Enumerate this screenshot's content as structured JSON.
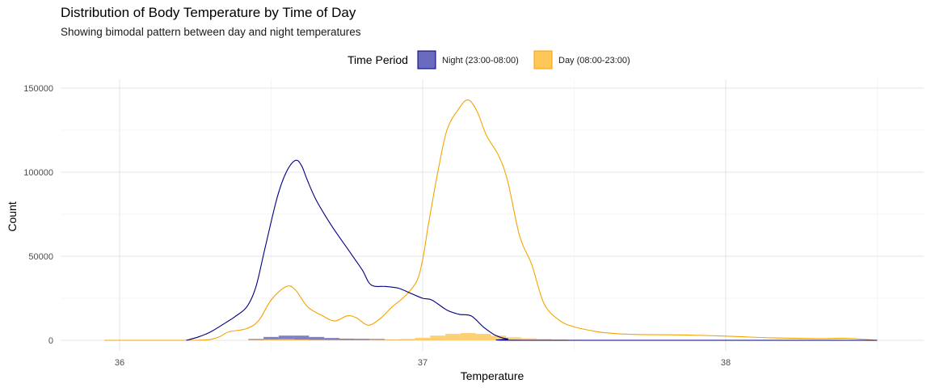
{
  "chart_data": {
    "type": "area",
    "title": "Distribution of Body Temperature by Time of Day",
    "subtitle": "Showing bimodal pattern between day and night temperatures",
    "xlabel": "Temperature",
    "ylabel": "Count",
    "xlim": [
      35.95,
      38.5
    ],
    "ylim": [
      0,
      150000
    ],
    "x_ticks": [
      36,
      37,
      38
    ],
    "y_ticks": [
      0,
      50000,
      100000,
      150000
    ],
    "grid": true,
    "legend": {
      "title": "Time Period",
      "placement": "top"
    },
    "series": [
      {
        "name": "Night (23:00-08:00)",
        "line_color": "#000080",
        "fill_color": "#6a6abf",
        "density": [
          [
            36.22,
            0
          ],
          [
            36.26,
            2000
          ],
          [
            36.3,
            5000
          ],
          [
            36.35,
            10500
          ],
          [
            36.38,
            14000
          ],
          [
            36.42,
            20000
          ],
          [
            36.45,
            32000
          ],
          [
            36.48,
            55000
          ],
          [
            36.52,
            85000
          ],
          [
            36.55,
            100000
          ],
          [
            36.58,
            107000
          ],
          [
            36.6,
            104000
          ],
          [
            36.62,
            95000
          ],
          [
            36.65,
            83000
          ],
          [
            36.7,
            68000
          ],
          [
            36.75,
            55000
          ],
          [
            36.8,
            42000
          ],
          [
            36.83,
            33000
          ],
          [
            36.88,
            32000
          ],
          [
            36.92,
            31000
          ],
          [
            36.96,
            28000
          ],
          [
            37.0,
            25000
          ],
          [
            37.03,
            24000
          ],
          [
            37.08,
            18000
          ],
          [
            37.12,
            15500
          ],
          [
            37.16,
            14500
          ],
          [
            37.2,
            8000
          ],
          [
            37.24,
            3000
          ],
          [
            37.28,
            800
          ],
          [
            37.35,
            0
          ],
          [
            38.5,
            0
          ]
        ],
        "histogram": [
          [
            36.45,
            800
          ],
          [
            36.5,
            2000
          ],
          [
            36.55,
            2800
          ],
          [
            36.6,
            2800
          ],
          [
            36.65,
            2000
          ],
          [
            36.7,
            1400
          ],
          [
            36.75,
            1000
          ],
          [
            36.8,
            900
          ],
          [
            36.85,
            800
          ],
          [
            36.9,
            500
          ],
          [
            36.95,
            300
          ],
          [
            37.0,
            200
          ],
          [
            37.05,
            100
          ]
        ]
      },
      {
        "name": "Day (08:00-23:00)",
        "line_color": "#f5a300",
        "fill_color": "#ffc75a",
        "density": [
          [
            35.95,
            0
          ],
          [
            36.25,
            0
          ],
          [
            36.32,
            1500
          ],
          [
            36.36,
            5000
          ],
          [
            36.42,
            7000
          ],
          [
            36.46,
            12000
          ],
          [
            36.5,
            24000
          ],
          [
            36.55,
            32000
          ],
          [
            36.58,
            30000
          ],
          [
            36.62,
            20000
          ],
          [
            36.67,
            14500
          ],
          [
            36.71,
            11500
          ],
          [
            36.75,
            14500
          ],
          [
            36.78,
            13500
          ],
          [
            36.82,
            9000
          ],
          [
            36.86,
            13000
          ],
          [
            36.9,
            20000
          ],
          [
            36.94,
            26000
          ],
          [
            36.98,
            35000
          ],
          [
            37.0,
            48000
          ],
          [
            37.02,
            70000
          ],
          [
            37.05,
            100000
          ],
          [
            37.08,
            125000
          ],
          [
            37.12,
            138000
          ],
          [
            37.15,
            143000
          ],
          [
            37.18,
            136000
          ],
          [
            37.21,
            122000
          ],
          [
            37.25,
            110000
          ],
          [
            37.28,
            95000
          ],
          [
            37.32,
            62000
          ],
          [
            37.36,
            45000
          ],
          [
            37.4,
            22000
          ],
          [
            37.45,
            12000
          ],
          [
            37.5,
            8000
          ],
          [
            37.55,
            6000
          ],
          [
            37.6,
            4500
          ],
          [
            37.7,
            3500
          ],
          [
            37.85,
            3200
          ],
          [
            38.0,
            2500
          ],
          [
            38.15,
            1500
          ],
          [
            38.3,
            1000
          ],
          [
            38.4,
            1200
          ],
          [
            38.5,
            0
          ]
        ],
        "histogram": [
          [
            36.45,
            300
          ],
          [
            36.5,
            600
          ],
          [
            36.55,
            700
          ],
          [
            36.6,
            500
          ],
          [
            36.65,
            300
          ],
          [
            36.7,
            200
          ],
          [
            36.75,
            200
          ],
          [
            36.8,
            200
          ],
          [
            36.85,
            300
          ],
          [
            36.9,
            500
          ],
          [
            36.95,
            800
          ],
          [
            37.0,
            1500
          ],
          [
            37.05,
            2800
          ],
          [
            37.1,
            3800
          ],
          [
            37.15,
            4300
          ],
          [
            37.2,
            3800
          ],
          [
            37.25,
            2800
          ],
          [
            37.3,
            1800
          ],
          [
            37.35,
            1200
          ],
          [
            37.4,
            800
          ],
          [
            37.45,
            500
          ],
          [
            37.5,
            300
          ],
          [
            37.6,
            200
          ],
          [
            37.8,
            150
          ],
          [
            38.0,
            100
          ],
          [
            38.2,
            80
          ]
        ]
      }
    ]
  }
}
